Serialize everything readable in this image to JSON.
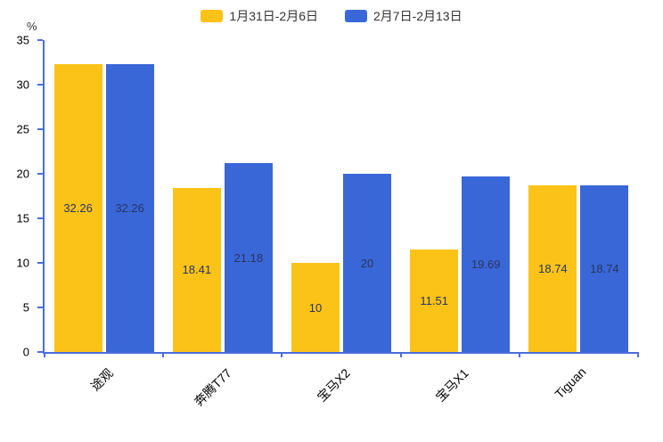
{
  "chart_data": {
    "type": "bar",
    "title": "",
    "categories": [
      "途观",
      "奔腾T77",
      "宝马X2",
      "宝马X1",
      "Tiguan"
    ],
    "series": [
      {
        "name": "1月31日-2月6日",
        "color": "#FBC318",
        "values": [
          32.26,
          18.41,
          10,
          11.51,
          18.74
        ],
        "labels": [
          "32.26",
          "18.41",
          "10",
          "11.51",
          "18.74"
        ]
      },
      {
        "name": "2月7日-2月13日",
        "color": "#3A67D7",
        "values": [
          32.26,
          21.18,
          20,
          19.69,
          18.74
        ],
        "labels": [
          "32.26",
          "21.18",
          "20",
          "19.69",
          "18.74"
        ]
      }
    ],
    "xlabel": "",
    "ylabel": "%",
    "ylim": [
      0,
      35
    ],
    "ytick_step": 5,
    "yticks": [
      0,
      5,
      10,
      15,
      20,
      25,
      30,
      35
    ],
    "grid": false,
    "legend_position": "top",
    "value_labels_inside_bars": true,
    "x_labels_rotated": true
  },
  "colors": {
    "axis": "#4A6EDB",
    "value_label_text": "#283460",
    "tick_text": "#000000",
    "legend_text": "#333333",
    "background": "#FFFFFF"
  }
}
